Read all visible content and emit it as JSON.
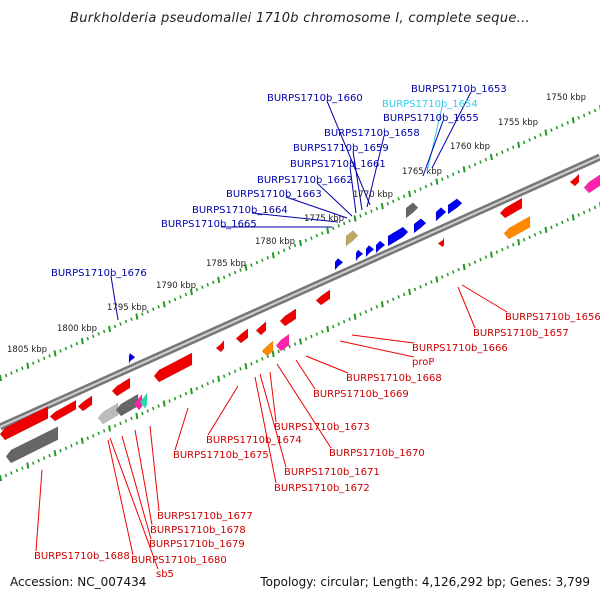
{
  "title": "Burkholderia pseudomallei 1710b chromosome I, complete seque...",
  "footer": {
    "accession": "Accession: NC_007434",
    "info": "Topology: circular; Length: 4,126,292 bp; Genes: 3,799"
  },
  "colors": {
    "forward_gene": "#0000ee",
    "reverse_gene": "#ee0000",
    "forward_label": "#0000aa",
    "reverse_label": "#cc0000",
    "highlight_label": "#33ccee",
    "backbone": "#888888",
    "tick": "#229922",
    "orange_feature": "#ff8800",
    "magenta_feature": "#ff22aa",
    "gray_feature": "#666666",
    "khaki_feature": "#bbaa66",
    "cyan_feature": "#22ddaa"
  },
  "ticks": [
    "1750 kbp",
    "1755 kbp",
    "1760 kbp",
    "1765 kbp",
    "1770 kbp",
    "1775 kbp",
    "1780 kbp",
    "1785 kbp",
    "1790 kbp",
    "1795 kbp",
    "1800 kbp",
    "1805 kbp"
  ],
  "forward_labels": [
    "BURPS1710b_1653",
    "BURPS1710b_1654",
    "BURPS1710b_1655",
    "BURPS1710b_1660",
    "BURPS1710b_1658",
    "BURPS1710b_1659",
    "BURPS1710b_1661",
    "BURPS1710b_1662",
    "BURPS1710b_1663",
    "BURPS1710b_1664",
    "BURPS1710b_1665",
    "BURPS1710b_1676"
  ],
  "reverse_labels": [
    "BURPS1710b_1656",
    "BURPS1710b_1657",
    "BURPS1710b_1666",
    "proP",
    "BURPS1710b_1668",
    "BURPS1710b_1669",
    "BURPS1710b_1673",
    "BURPS1710b_1674",
    "BURPS1710b_1675",
    "BURPS1710b_1670",
    "BURPS1710b_1671",
    "BURPS1710b_1672",
    "BURPS1710b_1677",
    "BURPS1710b_1678",
    "BURPS1710b_1679",
    "BURPS1710b_1680",
    "sb5",
    "BURPS1710b_1688"
  ]
}
